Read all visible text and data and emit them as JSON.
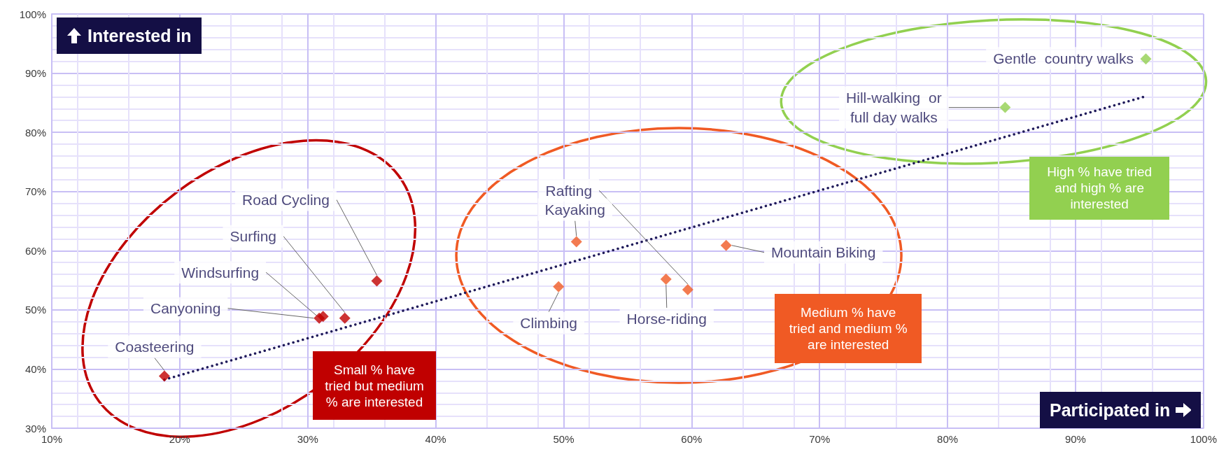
{
  "chart_data": {
    "type": "scatter",
    "xlabel": "Participated in",
    "ylabel": "Interested in",
    "xlim": [
      10,
      100
    ],
    "ylim": [
      30,
      100
    ],
    "xticks": [
      {
        "value": 10,
        "label": "10%"
      },
      {
        "value": 20,
        "label": "20%"
      },
      {
        "value": 30,
        "label": "30%"
      },
      {
        "value": 40,
        "label": "40%"
      },
      {
        "value": 50,
        "label": "50%"
      },
      {
        "value": 60,
        "label": "60%"
      },
      {
        "value": 70,
        "label": "70%"
      },
      {
        "value": 80,
        "label": "80%"
      },
      {
        "value": 90,
        "label": "90%"
      },
      {
        "value": 100,
        "label": "100%"
      }
    ],
    "yticks": [
      {
        "value": 30,
        "label": "30%"
      },
      {
        "value": 40,
        "label": "40%"
      },
      {
        "value": 50,
        "label": "50%"
      },
      {
        "value": 60,
        "label": "60%"
      },
      {
        "value": 70,
        "label": "70%"
      },
      {
        "value": 80,
        "label": "80%"
      },
      {
        "value": 90,
        "label": "90%"
      },
      {
        "value": 100,
        "label": "100%"
      }
    ],
    "grid": true,
    "legend": false,
    "marker": "diamond",
    "series": [
      {
        "name": "Coasteering",
        "color": "#c00000",
        "x": [
          18.8
        ],
        "values": [
          38.8
        ]
      },
      {
        "name": "Canyoning",
        "color": "#c00000",
        "x": [
          30.9
        ],
        "values": [
          48.6
        ]
      },
      {
        "name": "Windsurfing",
        "color": "#c00000",
        "x": [
          31.2
        ],
        "values": [
          48.9
        ]
      },
      {
        "name": "Surfing",
        "color": "#c00000",
        "x": [
          32.9
        ],
        "values": [
          48.6
        ]
      },
      {
        "name": "Road Cycling",
        "color": "#c00000",
        "x": [
          35.4
        ],
        "values": [
          54.9
        ]
      },
      {
        "name": "Kayaking",
        "color": "#f05a24",
        "x": [
          51.0
        ],
        "values": [
          61.5
        ]
      },
      {
        "name": "Climbing",
        "color": "#f05a24",
        "x": [
          49.6
        ],
        "values": [
          53.9
        ]
      },
      {
        "name": "Horse-riding",
        "color": "#f05a24",
        "x": [
          58.0
        ],
        "values": [
          55.2
        ]
      },
      {
        "name": "Rafting",
        "color": "#f05a24",
        "x": [
          59.7
        ],
        "values": [
          53.4
        ]
      },
      {
        "name": "Mountain Biking",
        "color": "#f05a24",
        "x": [
          62.7
        ],
        "values": [
          60.9
        ]
      },
      {
        "name": "Hill-walking  or\nfull day walks",
        "color": "#92d050",
        "x": [
          84.5
        ],
        "values": [
          84.2
        ]
      },
      {
        "name": "Gentle  country walks",
        "color": "#92d050",
        "x": [
          95.5
        ],
        "values": [
          92.4
        ]
      },
      {
        "type": "line",
        "color": "#1f1a5a",
        "marker": "none",
        "line_style": "dotted",
        "x": [
          18.8,
          95.5
        ],
        "values": [
          38.2,
          86.1
        ]
      }
    ],
    "annotations": [
      "Small % have tried but medium % are interested",
      "Medium % have tried and medium % are interested",
      "High % have tried and high % are interested"
    ]
  }
}
